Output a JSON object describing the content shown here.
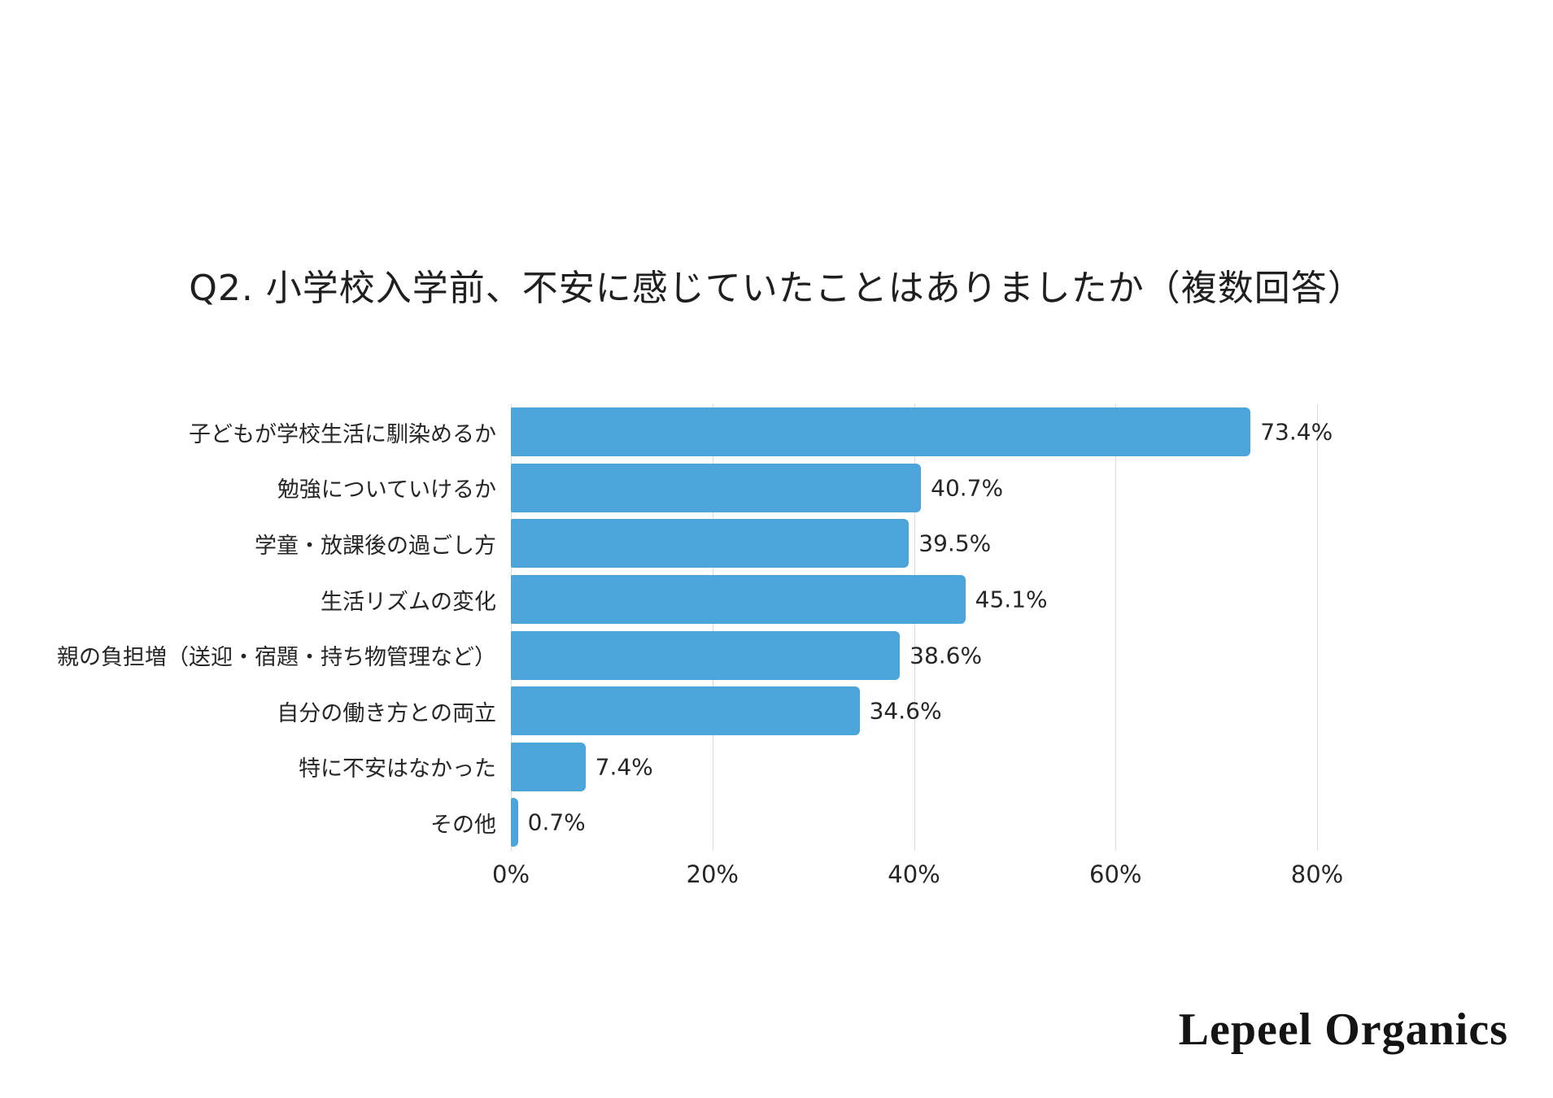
{
  "title": "Q2. 小学校入学前、不安に感じていたことはありましたか（複数回答）",
  "chart_data": {
    "type": "bar",
    "orientation": "horizontal",
    "title": "Q2. 小学校入学前、不安に感じていたことはありましたか（複数回答）",
    "categories": [
      "子どもが学校生活に馴染めるか",
      "勉強についていけるか",
      "学童・放課後の過ごし方",
      "生活リズムの変化",
      "親の負担増（送迎・宿題・持ち物管理など）",
      "自分の働き方との両立",
      "特に不安はなかった",
      "その他"
    ],
    "values": [
      73.4,
      40.7,
      39.5,
      45.1,
      38.6,
      34.6,
      7.4,
      0.7
    ],
    "value_labels": [
      "73.4%",
      "40.7%",
      "39.5%",
      "45.1%",
      "38.6%",
      "34.6%",
      "7.4%",
      "0.7%"
    ],
    "xlabel": "",
    "ylabel": "",
    "xlim": [
      0,
      80
    ],
    "x_ticks": [
      {
        "value": 0,
        "label": "0%"
      },
      {
        "value": 20,
        "label": "20%"
      },
      {
        "value": 40,
        "label": "40%"
      },
      {
        "value": 60,
        "label": "60%"
      },
      {
        "value": 80,
        "label": "80%"
      }
    ],
    "grid": true,
    "legend": false,
    "bar_color": "#4BA5DA",
    "gridline_color": "#D9D9D9",
    "text_color": "#262626",
    "background_color": "#FFFFFF"
  },
  "footer": {
    "logo_text": "Lepeel Organics"
  }
}
